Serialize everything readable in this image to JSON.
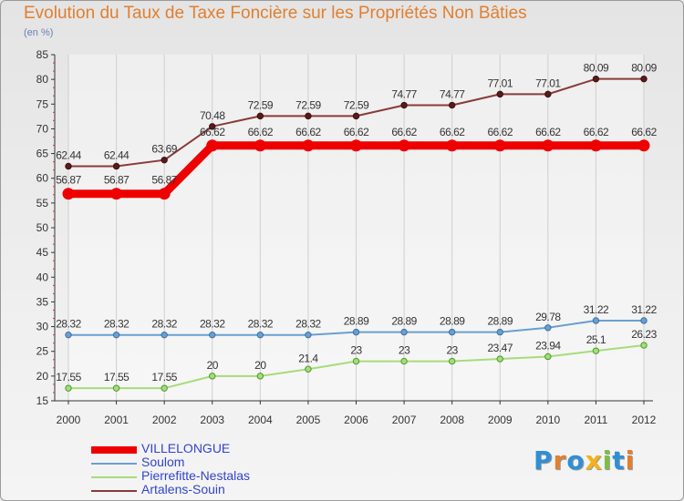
{
  "title": "Evolution du Taux de Taxe Foncière sur les Propriétés Non Bâties",
  "unit_label": "(en %)",
  "logo": {
    "letters": [
      "P",
      "r",
      "o",
      "x",
      "i",
      "t",
      "i"
    ],
    "colors": [
      "#2f8fd6",
      "#e07f2f",
      "#2f8fd6",
      "#f2b21b",
      "#7cc043",
      "#2f8fd6",
      "#e07f2f"
    ]
  },
  "chart_data": {
    "type": "line",
    "title": "Evolution du Taux de Taxe Foncière sur les Propriétés Non Bâties",
    "ylabel": "(en %)",
    "xlabel": "",
    "x": [
      "2000",
      "2001",
      "2002",
      "2003",
      "2004",
      "2005",
      "2006",
      "2007",
      "2008",
      "2009",
      "2010",
      "2011",
      "2012"
    ],
    "ylim": [
      15,
      85
    ],
    "yticks": [
      15,
      20,
      25,
      30,
      35,
      40,
      45,
      50,
      55,
      60,
      65,
      70,
      75,
      80,
      85
    ],
    "grid": "vertical",
    "legend_position": "bottom-left",
    "series": [
      {
        "name": "VILLELONGUE",
        "color": "#ee0000",
        "values": [
          56.87,
          56.87,
          56.87,
          66.62,
          66.62,
          66.62,
          66.62,
          66.62,
          66.62,
          66.62,
          66.62,
          66.62,
          66.62
        ],
        "labels": [
          "56.87",
          "56.87",
          "56.87",
          "66.62",
          "66.62",
          "66.62",
          "66.62",
          "66.62",
          "66.62",
          "66.62",
          "66.62",
          "66.62",
          "66.62"
        ]
      },
      {
        "name": "Soulom",
        "color": "#6a9fcf",
        "values": [
          28.32,
          28.32,
          28.32,
          28.32,
          28.32,
          28.32,
          28.89,
          28.89,
          28.89,
          28.89,
          29.78,
          31.22,
          31.22
        ],
        "labels": [
          "28.32",
          "28.32",
          "28.32",
          "28.32",
          "28.32",
          "28.32",
          "28.89",
          "28.89",
          "28.89",
          "28.89",
          "29.78",
          "31.22",
          "31.22"
        ]
      },
      {
        "name": "Pierrefitte-Nestalas",
        "color": "#a6dc7a",
        "values": [
          17.55,
          17.55,
          17.55,
          20,
          20,
          21.4,
          23,
          23,
          23,
          23.47,
          23.94,
          25.1,
          26.23
        ],
        "labels": [
          "17.55",
          "17.55",
          "17.55",
          "20",
          "20",
          "21.4",
          "23",
          "23",
          "23",
          "23.47",
          "23.94",
          "25.1",
          "26.23"
        ]
      },
      {
        "name": "Artalens-Souin",
        "color": "#8b3a3a",
        "values": [
          62.44,
          62.44,
          63.69,
          70.48,
          72.59,
          72.59,
          72.59,
          74.77,
          74.77,
          77.01,
          77.01,
          80.09,
          80.09
        ],
        "labels": [
          "62.44",
          "62.44",
          "63.69",
          "70.48",
          "72.59",
          "72.59",
          "72.59",
          "74.77",
          "74.77",
          "77.01",
          "77.01",
          "80.09",
          "80.09"
        ]
      }
    ]
  }
}
